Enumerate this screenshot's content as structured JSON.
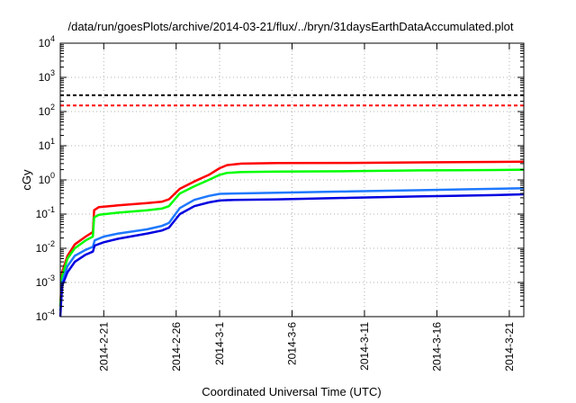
{
  "chart_data": {
    "type": "line",
    "title": "/data/run/goesPlots/archive/2014-03-21/flux/../bryn/31daysEarthDataAccumulated.plot",
    "xlabel": "Coordinated Universal Time (UTC)",
    "ylabel": "cGy",
    "yscale": "log",
    "ylim": [
      0.0001,
      10000
    ],
    "xlim": [
      "2014-02-18",
      "2014-03-22"
    ],
    "grid": true,
    "legend": "none",
    "y_ticks": [
      {
        "base": "10",
        "exp": "-4",
        "value": 0.0001
      },
      {
        "base": "10",
        "exp": "-3",
        "value": 0.001
      },
      {
        "base": "10",
        "exp": "-2",
        "value": 0.01
      },
      {
        "base": "10",
        "exp": "-1",
        "value": 0.1
      },
      {
        "base": "10",
        "exp": "0",
        "value": 1
      },
      {
        "base": "10",
        "exp": "1",
        "value": 10
      },
      {
        "base": "10",
        "exp": "2",
        "value": 100
      },
      {
        "base": "10",
        "exp": "3",
        "value": 1000
      },
      {
        "base": "10",
        "exp": "4",
        "value": 10000
      }
    ],
    "x_ticks": [
      {
        "label": "2014-2-21",
        "date": "2014-02-21"
      },
      {
        "label": "2014-2-26",
        "date": "2014-02-26"
      },
      {
        "label": "2014-3-1",
        "date": "2014-03-01"
      },
      {
        "label": "2014-3-6",
        "date": "2014-03-06"
      },
      {
        "label": "2014-3-11",
        "date": "2014-03-11"
      },
      {
        "label": "2014-3-16",
        "date": "2014-03-16"
      },
      {
        "label": "2014-3-21",
        "date": "2014-03-21"
      }
    ],
    "thresholds": [
      {
        "value": 300,
        "color": "#000000",
        "style": "dashed"
      },
      {
        "value": 150,
        "color": "#ff0000",
        "style": "dashed"
      }
    ],
    "series": [
      {
        "color": "#ff0000",
        "points": [
          [
            "2014-02-18 00:00",
            0.0002
          ],
          [
            "2014-02-18 03:00",
            0.002
          ],
          [
            "2014-02-18 12:00",
            0.006
          ],
          [
            "2014-02-19 00:00",
            0.013
          ],
          [
            "2014-02-19 18:00",
            0.022
          ],
          [
            "2014-02-20 06:00",
            0.03
          ],
          [
            "2014-02-20 08:00",
            0.13
          ],
          [
            "2014-02-20 16:00",
            0.16
          ],
          [
            "2014-02-22 00:00",
            0.18
          ],
          [
            "2014-02-24 00:00",
            0.21
          ],
          [
            "2014-02-25 00:00",
            0.23
          ],
          [
            "2014-02-25 12:00",
            0.27
          ],
          [
            "2014-02-26 06:00",
            0.55
          ],
          [
            "2014-02-27 06:00",
            0.9
          ],
          [
            "2014-02-28 06:00",
            1.4
          ],
          [
            "2014-03-01 00:00",
            2.2
          ],
          [
            "2014-03-01 12:00",
            2.7
          ],
          [
            "2014-03-02 12:00",
            3.0
          ],
          [
            "2014-03-05 00:00",
            3.1
          ],
          [
            "2014-03-10 00:00",
            3.15
          ],
          [
            "2014-03-15 00:00",
            3.25
          ],
          [
            "2014-03-20 00:00",
            3.35
          ],
          [
            "2014-03-22 00:00",
            3.4
          ]
        ]
      },
      {
        "color": "#00ff00",
        "points": [
          [
            "2014-02-18 00:00",
            0.0002
          ],
          [
            "2014-02-18 03:00",
            0.0015
          ],
          [
            "2014-02-18 12:00",
            0.005
          ],
          [
            "2014-02-19 00:00",
            0.01
          ],
          [
            "2014-02-19 18:00",
            0.017
          ],
          [
            "2014-02-20 06:00",
            0.022
          ],
          [
            "2014-02-20 08:00",
            0.08
          ],
          [
            "2014-02-20 16:00",
            0.095
          ],
          [
            "2014-02-22 00:00",
            0.11
          ],
          [
            "2014-02-24 00:00",
            0.13
          ],
          [
            "2014-02-25 00:00",
            0.145
          ],
          [
            "2014-02-25 12:00",
            0.17
          ],
          [
            "2014-02-26 06:00",
            0.4
          ],
          [
            "2014-02-27 06:00",
            0.65
          ],
          [
            "2014-02-28 06:00",
            1.0
          ],
          [
            "2014-03-01 00:00",
            1.4
          ],
          [
            "2014-03-01 12:00",
            1.6
          ],
          [
            "2014-03-02 12:00",
            1.7
          ],
          [
            "2014-03-05 00:00",
            1.75
          ],
          [
            "2014-03-10 00:00",
            1.8
          ],
          [
            "2014-03-15 00:00",
            1.9
          ],
          [
            "2014-03-20 00:00",
            1.95
          ],
          [
            "2014-03-22 00:00",
            2.0
          ]
        ]
      },
      {
        "color": "#1e78ff",
        "points": [
          [
            "2014-02-18 00:00",
            0.00015
          ],
          [
            "2014-02-18 03:00",
            0.001
          ],
          [
            "2014-02-18 12:00",
            0.003
          ],
          [
            "2014-02-19 00:00",
            0.006
          ],
          [
            "2014-02-19 18:00",
            0.009
          ],
          [
            "2014-02-20 06:00",
            0.011
          ],
          [
            "2014-02-20 09:00",
            0.017
          ],
          [
            "2014-02-21 00:00",
            0.022
          ],
          [
            "2014-02-22 00:00",
            0.027
          ],
          [
            "2014-02-24 00:00",
            0.036
          ],
          [
            "2014-02-25 00:00",
            0.045
          ],
          [
            "2014-02-25 12:00",
            0.055
          ],
          [
            "2014-02-26 06:00",
            0.15
          ],
          [
            "2014-02-27 06:00",
            0.26
          ],
          [
            "2014-02-28 06:00",
            0.34
          ],
          [
            "2014-03-01 00:00",
            0.39
          ],
          [
            "2014-03-02 00:00",
            0.4
          ],
          [
            "2014-03-05 00:00",
            0.42
          ],
          [
            "2014-03-10 00:00",
            0.46
          ],
          [
            "2014-03-15 00:00",
            0.5
          ],
          [
            "2014-03-20 00:00",
            0.55
          ],
          [
            "2014-03-22 00:00",
            0.57
          ]
        ]
      },
      {
        "color": "#0000e0",
        "points": [
          [
            "2014-02-18 00:00",
            0.0001
          ],
          [
            "2014-02-18 03:00",
            0.0008
          ],
          [
            "2014-02-18 12:00",
            0.002
          ],
          [
            "2014-02-19 00:00",
            0.004
          ],
          [
            "2014-02-19 18:00",
            0.0065
          ],
          [
            "2014-02-20 06:00",
            0.008
          ],
          [
            "2014-02-20 09:00",
            0.012
          ],
          [
            "2014-02-21 00:00",
            0.015
          ],
          [
            "2014-02-22 00:00",
            0.019
          ],
          [
            "2014-02-24 00:00",
            0.027
          ],
          [
            "2014-02-25 00:00",
            0.033
          ],
          [
            "2014-02-25 12:00",
            0.04
          ],
          [
            "2014-02-26 06:00",
            0.1
          ],
          [
            "2014-02-27 06:00",
            0.17
          ],
          [
            "2014-02-28 06:00",
            0.22
          ],
          [
            "2014-03-01 00:00",
            0.25
          ],
          [
            "2014-03-02 00:00",
            0.26
          ],
          [
            "2014-03-05 00:00",
            0.27
          ],
          [
            "2014-03-10 00:00",
            0.3
          ],
          [
            "2014-03-15 00:00",
            0.33
          ],
          [
            "2014-03-20 00:00",
            0.36
          ],
          [
            "2014-03-22 00:00",
            0.38
          ]
        ]
      }
    ]
  }
}
